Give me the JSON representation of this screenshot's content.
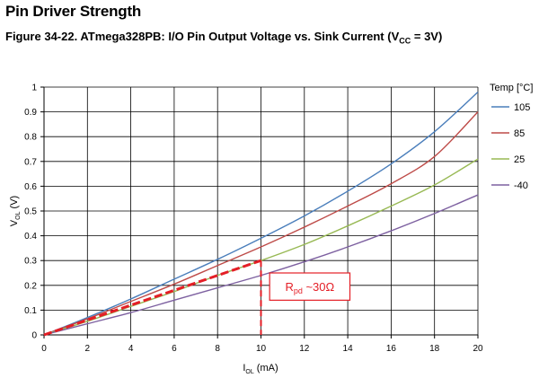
{
  "header": {
    "section_title": "Pin Driver Strength",
    "caption_prefix": "Figure 34-22.  ATmega328PB: I/O Pin Output Voltage vs. Sink Current (V",
    "caption_sub": "CC",
    "caption_suffix": " = 3V)"
  },
  "chart_data": {
    "type": "line",
    "xlabel_main": "I",
    "xlabel_sub": "OL",
    "xlabel_unit": " (mA)",
    "ylabel_main": "V",
    "ylabel_sub": "OL",
    "ylabel_unit": " (V)",
    "xlim": [
      0,
      20
    ],
    "ylim": [
      0,
      1
    ],
    "xticks": [
      0,
      2,
      4,
      6,
      8,
      10,
      12,
      14,
      16,
      18,
      20
    ],
    "yticks": [
      0,
      0.1,
      0.2,
      0.3,
      0.4,
      0.5,
      0.6,
      0.7,
      0.8,
      0.9,
      1
    ],
    "xtick_labels": [
      "0",
      "2",
      "4",
      "6",
      "8",
      "10",
      "12",
      "14",
      "16",
      "18",
      "20"
    ],
    "ytick_labels": [
      "0",
      "0.1",
      "0.2",
      "0.3",
      "0.4",
      "0.5",
      "0.6",
      "0.7",
      "0.8",
      "0.9",
      "1"
    ],
    "grid": true,
    "legend_title": "Temp [°C]",
    "legend_position": "right",
    "x": [
      0,
      2,
      4,
      6,
      8,
      10,
      12,
      14,
      16,
      18,
      20
    ],
    "series": [
      {
        "name": "105",
        "color": "#4a7ebb",
        "values": [
          0,
          0.07,
          0.145,
          0.225,
          0.305,
          0.39,
          0.48,
          0.58,
          0.69,
          0.82,
          0.98
        ]
      },
      {
        "name": "85",
        "color": "#be4b48",
        "values": [
          0,
          0.065,
          0.135,
          0.205,
          0.28,
          0.355,
          0.435,
          0.52,
          0.61,
          0.72,
          0.9
        ]
      },
      {
        "name": "25",
        "color": "#98b954",
        "values": [
          0,
          0.055,
          0.115,
          0.175,
          0.24,
          0.3,
          0.365,
          0.44,
          0.52,
          0.605,
          0.71
        ]
      },
      {
        "name": "-40",
        "color": "#7d60a0",
        "values": [
          0,
          0.045,
          0.09,
          0.14,
          0.19,
          0.24,
          0.295,
          0.355,
          0.42,
          0.49,
          0.565
        ]
      }
    ],
    "annotation": {
      "text_main": "R",
      "text_sub": "pd",
      "text_suffix": " ~30Ω",
      "color": "#e41e26",
      "line_points": [
        [
          0,
          0
        ],
        [
          10,
          0.3
        ]
      ],
      "drop_x": 10,
      "box_x": [
        10.4,
        14.1
      ],
      "box_y": [
        0.14,
        0.25
      ]
    }
  }
}
